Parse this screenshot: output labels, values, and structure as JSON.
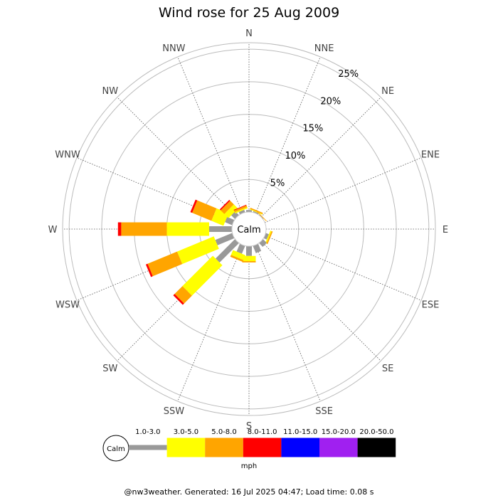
{
  "chart_data": {
    "type": "wind-rose",
    "title": "Wind rose for 25 Aug 2009",
    "calm_label": "Calm",
    "directions": [
      "N",
      "NNE",
      "NE",
      "ENE",
      "E",
      "ESE",
      "SE",
      "SSE",
      "S",
      "SSW",
      "SW",
      "WSW",
      "W",
      "WNW",
      "NW",
      "NNW"
    ],
    "radial_ticks": [
      5,
      10,
      15,
      20,
      25
    ],
    "radial_tick_labels": [
      "5%",
      "10%",
      "15%",
      "20%",
      "25%"
    ],
    "radial_max": 26,
    "units": "mph",
    "speed_bins": [
      {
        "label": "1.0-3.0",
        "color": "#999999",
        "width": "narrow"
      },
      {
        "label": "3.0-5.0",
        "color": "#ffff00",
        "width": "wide"
      },
      {
        "label": "5.0-8.0",
        "color": "#ffa500",
        "width": "wide"
      },
      {
        "label": "8.0-11.0",
        "color": "#ff0000",
        "width": "wide"
      },
      {
        "label": "11.0-15.0",
        "color": "#0000ff",
        "width": "wide"
      },
      {
        "label": "15.0-20.0",
        "color": "#a020f0",
        "width": "wide"
      },
      {
        "label": "20.0-50.0",
        "color": "#000000",
        "width": "wide"
      }
    ],
    "series": [
      {
        "name": "1.0-3.0",
        "values": [
          0.3,
          0.2,
          0.1,
          0,
          0,
          0.5,
          0.8,
          1.2,
          1.5,
          1.3,
          4.2,
          2.8,
          3.5,
          1.2,
          0.8,
          0.4
        ]
      },
      {
        "name": "3.0-5.0",
        "values": [
          0,
          0.1,
          0,
          0,
          0,
          0.2,
          0,
          0,
          0.8,
          0.8,
          6.6,
          6.1,
          6.5,
          2.0,
          0.9,
          0.2
        ]
      },
      {
        "name": "5.0-8.0",
        "values": [
          0,
          0.2,
          0.1,
          0,
          0,
          0.2,
          0,
          0,
          0.2,
          0.3,
          1.7,
          4.9,
          7.0,
          3.2,
          0.8,
          0.3
        ]
      },
      {
        "name": "8.0-11.0",
        "values": [
          0,
          0,
          0,
          0,
          0,
          0,
          0,
          0,
          0,
          0,
          0.3,
          0.3,
          0.5,
          0.3,
          0.2,
          0.1
        ]
      },
      {
        "name": "11.0-15.0",
        "values": [
          0,
          0,
          0,
          0,
          0,
          0,
          0,
          0,
          0,
          0,
          0,
          0,
          0,
          0,
          0,
          0
        ]
      },
      {
        "name": "15.0-20.0",
        "values": [
          0,
          0,
          0,
          0,
          0,
          0,
          0,
          0,
          0,
          0,
          0,
          0,
          0,
          0,
          0,
          0
        ]
      },
      {
        "name": "20.0-50.0",
        "values": [
          0,
          0,
          0,
          0,
          0,
          0,
          0,
          0,
          0,
          0,
          0,
          0,
          0,
          0,
          0,
          0
        ]
      }
    ],
    "grid": true
  },
  "footer": "@nw3weather. Generated: 16 Jul 2025 04:47; Load time: 0.08 s"
}
